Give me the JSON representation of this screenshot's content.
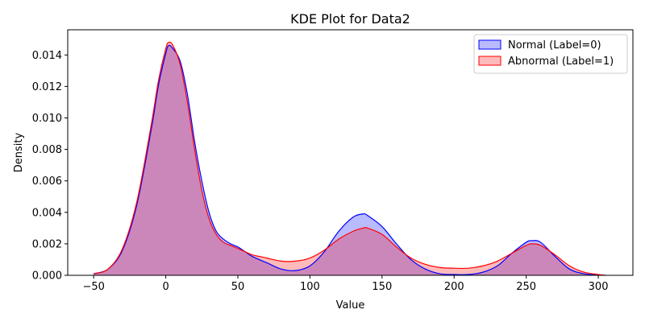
{
  "chart_data": {
    "type": "area",
    "title": "KDE Plot for Data2",
    "xlabel": "Value",
    "ylabel": "Density",
    "xlim": [
      -68,
      324
    ],
    "ylim": [
      0,
      0.0156
    ],
    "xticks": [
      -50,
      0,
      50,
      100,
      150,
      200,
      250,
      300
    ],
    "yticks": [
      0.0,
      0.002,
      0.004,
      0.006,
      0.008,
      0.01,
      0.012,
      0.014
    ],
    "ytick_labels": [
      "0.000",
      "0.002",
      "0.004",
      "0.006",
      "0.008",
      "0.010",
      "0.012",
      "0.014"
    ],
    "legend_position": "upper-right",
    "series": [
      {
        "name": "Normal (Label=0)",
        "color": "#0000ff",
        "x": [
          -50,
          -40,
          -30,
          -20,
          -10,
          -5,
          0,
          2,
          5,
          10,
          15,
          20,
          25,
          30,
          35,
          40,
          45,
          50,
          55,
          60,
          70,
          80,
          90,
          100,
          110,
          120,
          130,
          137,
          140,
          150,
          160,
          170,
          180,
          190,
          200,
          210,
          220,
          230,
          240,
          250,
          254,
          260,
          270,
          280,
          290,
          300,
          305
        ],
        "y": [
          0.0001,
          0.0004,
          0.0016,
          0.0045,
          0.0093,
          0.0121,
          0.0141,
          0.0146,
          0.0144,
          0.0136,
          0.0115,
          0.0085,
          0.006,
          0.004,
          0.0028,
          0.0023,
          0.002,
          0.0018,
          0.0015,
          0.0012,
          0.0008,
          0.0004,
          0.0003,
          0.0006,
          0.0015,
          0.0028,
          0.0037,
          0.0039,
          0.0038,
          0.0031,
          0.002,
          0.001,
          0.0004,
          0.0001,
          5e-05,
          5e-05,
          0.0002,
          0.0006,
          0.0014,
          0.0021,
          0.0022,
          0.0021,
          0.0012,
          0.0004,
          0.0001,
          2e-05,
          0.0
        ]
      },
      {
        "name": "Abnormal (Label=1)",
        "color": "#ff0000",
        "x": [
          -50,
          -40,
          -30,
          -20,
          -10,
          -5,
          0,
          2,
          5,
          10,
          15,
          20,
          25,
          30,
          35,
          40,
          45,
          50,
          55,
          60,
          70,
          80,
          90,
          100,
          110,
          120,
          130,
          137,
          140,
          150,
          160,
          170,
          180,
          190,
          200,
          210,
          220,
          230,
          240,
          250,
          254,
          260,
          270,
          280,
          290,
          300,
          305
        ],
        "y": [
          0.0001,
          0.0004,
          0.0017,
          0.0047,
          0.0096,
          0.0124,
          0.0144,
          0.0148,
          0.0146,
          0.0134,
          0.011,
          0.008,
          0.0054,
          0.0036,
          0.0026,
          0.0021,
          0.0019,
          0.0017,
          0.0015,
          0.0013,
          0.0011,
          0.0009,
          0.0009,
          0.0011,
          0.0016,
          0.0023,
          0.0028,
          0.003,
          0.003,
          0.0026,
          0.0018,
          0.0011,
          0.0007,
          0.0005,
          0.00045,
          0.00045,
          0.0006,
          0.0009,
          0.0014,
          0.0019,
          0.002,
          0.0019,
          0.0013,
          0.0006,
          0.0002,
          5e-05,
          0.0
        ]
      }
    ]
  }
}
